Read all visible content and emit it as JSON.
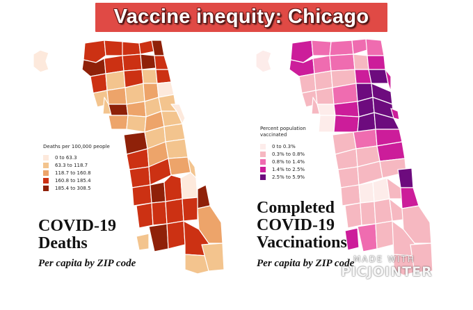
{
  "banner": {
    "title": "Vaccine inequity: Chicago",
    "color": "#e04a45"
  },
  "left_panel": {
    "title_line1": "COVID-19",
    "title_line2": "Deaths",
    "subtitle": "Per capita by ZIP code",
    "legend": {
      "title": "Deaths per 100,000 people",
      "items": [
        {
          "label": "0 to 63.3",
          "color": "#fde9dc"
        },
        {
          "label": "63.3 to 118.7",
          "color": "#f3c48e"
        },
        {
          "label": "118.7 to 160.8",
          "color": "#eda46a"
        },
        {
          "label": "160.8 to 185.4",
          "color": "#cc3113"
        },
        {
          "label": "185.4 to 308.5",
          "color": "#8f2109"
        }
      ]
    }
  },
  "right_panel": {
    "title_line1": "Completed",
    "title_line2": "COVID-19",
    "title_line3": "Vaccinations",
    "subtitle": "Per capita by ZIP code",
    "legend": {
      "title": "Percent population vaccinated",
      "items": [
        {
          "label": "0 to 0.3%",
          "color": "#fdecea"
        },
        {
          "label": "0.3% to 0.8%",
          "color": "#f6b8c1"
        },
        {
          "label": "0.8% to 1.4%",
          "color": "#ef6cb0"
        },
        {
          "label": "1.4% to 2.5%",
          "color": "#cc1d9a"
        },
        {
          "label": "2.5% to 5.9%",
          "color": "#6d0b7e"
        }
      ]
    }
  },
  "watermark": {
    "line1": "MADE WITH",
    "line2": "PICJOINTER",
    "logo_icon": "picjointer-logo-icon"
  }
}
